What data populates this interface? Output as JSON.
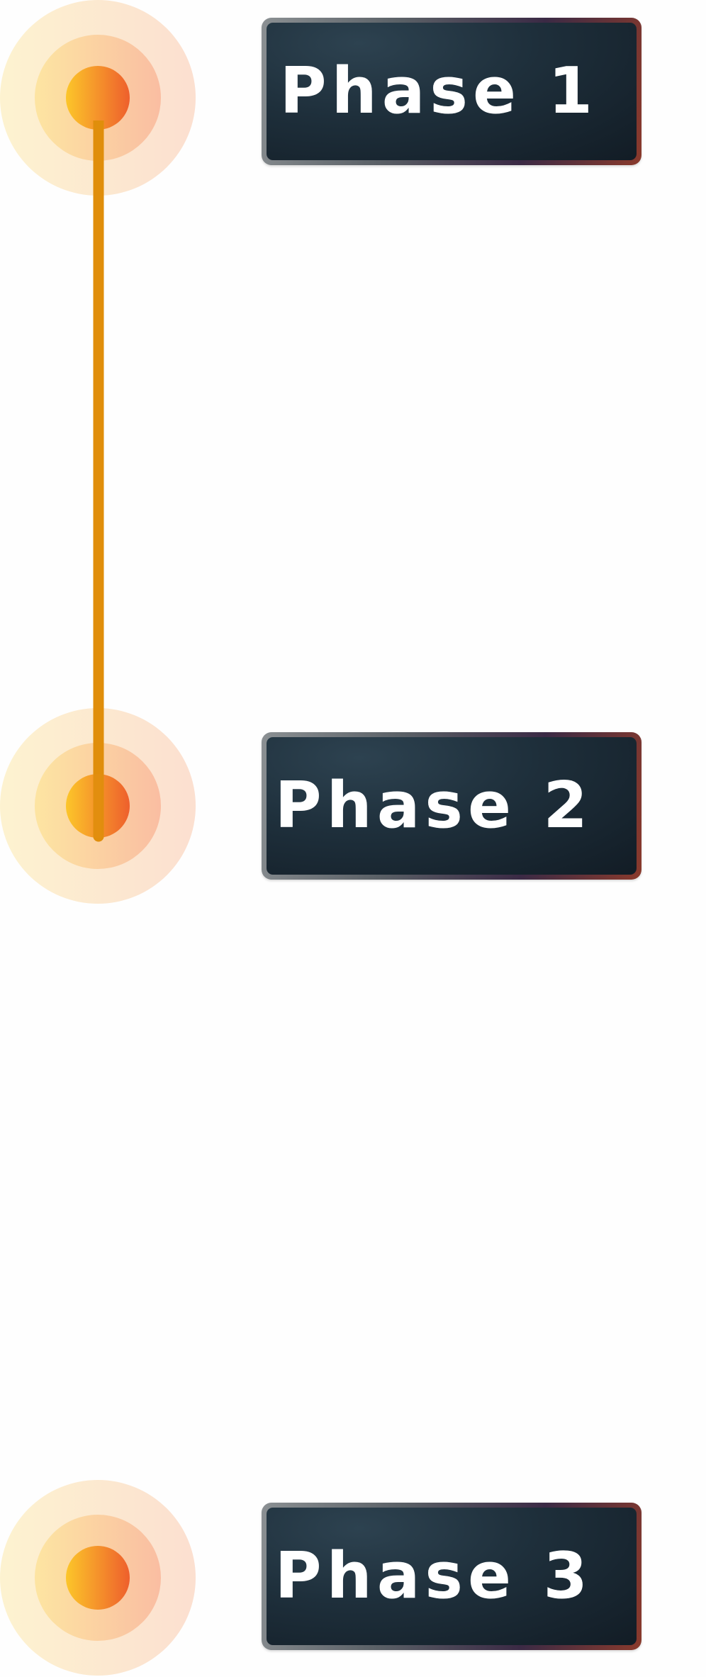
{
  "phases": [
    {
      "label": "Phase 1",
      "status": "completed"
    },
    {
      "label": "Phase 2",
      "status": "current"
    },
    {
      "label": "Phase 3",
      "status": "upcoming"
    }
  ],
  "colors": {
    "completed_line": "#e08e0b",
    "upcoming_line": "#f3c98a",
    "node_start": "#fbc02d",
    "node_end": "#f0672c",
    "card_bg": "#1e2f3b",
    "label_text": "#ffffff"
  }
}
